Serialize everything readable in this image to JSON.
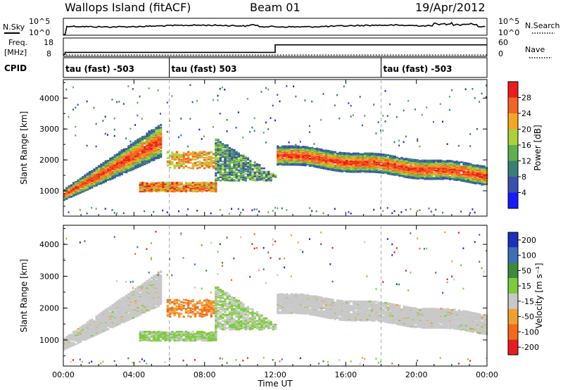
{
  "header": {
    "left": "Wallops Island (fitACF)",
    "center": "Beam 01",
    "right": "19/Apr/2012"
  },
  "noise_panel": {
    "left_label": "N.Sky",
    "right_label": "N.Search",
    "left_ticks": [
      "10^5",
      "10^0"
    ],
    "right_ticks": [
      "10^5",
      "10^0"
    ]
  },
  "freq_panel": {
    "left_label_line1": "Freq.",
    "left_label_line2": "[MHz]",
    "left_ticks": [
      "18",
      "8"
    ],
    "right_label": "Nave",
    "right_ticks": [
      "60",
      "0"
    ],
    "freq_steps": [
      {
        "t": 0.0,
        "mhz": 9.2
      },
      {
        "t": 0.1,
        "mhz": 10.3
      },
      {
        "t": 12.0,
        "mhz": 14.8
      }
    ],
    "nave_level": 5
  },
  "cpid_panel": {
    "label": "CPID",
    "segments": [
      {
        "start": 0.0,
        "text": "tau (fast) -503"
      },
      {
        "start": 6.0,
        "text": "tau (fast) 503"
      },
      {
        "start": 18.0,
        "text": "tau (fast) -503"
      }
    ]
  },
  "power_panel": {
    "ylabel": "Slant Range [km]",
    "yticks": [
      "1000",
      "2000",
      "3000",
      "4000"
    ],
    "colorbar_label": "Power [dB]",
    "colorbar_ticks": [
      "4",
      "8",
      "12",
      "16",
      "20",
      "24",
      "28"
    ],
    "colors": [
      "#1a1aff",
      "#3a4fb0",
      "#3a7f76",
      "#5fae4f",
      "#a8d13a",
      "#f5a623",
      "#f26522",
      "#ee1c1c"
    ]
  },
  "velocity_panel": {
    "ylabel": "Slant Range [km]",
    "yticks": [
      "1000",
      "2000",
      "3000",
      "4000"
    ],
    "colorbar_label": "Velocity [m s⁻¹]",
    "colorbar_ticks": [
      "200",
      "100",
      "50",
      "15",
      "-15",
      "-50",
      "-100",
      "-200"
    ],
    "colors": [
      "#1a2fbf",
      "#3c6fb3",
      "#3d8a3c",
      "#7ccc3a",
      "#c8c8c8",
      "#f0a030",
      "#f36a1a",
      "#e81c1c"
    ]
  },
  "time_axis": {
    "xlabel": "Time UT",
    "ticks": [
      "00:00",
      "04:00",
      "08:00",
      "12:00",
      "16:00",
      "20:00",
      "00:00"
    ]
  },
  "chart_data": {
    "type": "heatmap",
    "title": "Wallops Island (fitACF)   Beam 01   19/Apr/2012",
    "xlabel": "Time UT",
    "xlim": [
      "00:00",
      "24:00"
    ],
    "ylabel": "Slant Range [km]",
    "ylim": [
      180,
      4600
    ],
    "grid": false,
    "panels": [
      {
        "name": "Power",
        "colorbar_label": "Power [dB]",
        "color_range": [
          0,
          30
        ],
        "features": [
          {
            "t_start": 0.0,
            "t_end": 5.5,
            "range_start_km": 850,
            "range_end_km": 2900,
            "power_db": 26
          },
          {
            "t_start": 4.2,
            "t_end": 8.5,
            "range_start_km": 1000,
            "range_end_km": 1200,
            "power_db": 22
          },
          {
            "t_start": 8.5,
            "t_end": 12.0,
            "range_start_km": 1300,
            "range_end_km": 2800,
            "power_db": 12
          },
          {
            "t_start": 12.0,
            "t_end": 24.0,
            "range_start_km": 1400,
            "range_end_km": 2300,
            "power_db": 22
          }
        ]
      },
      {
        "name": "Velocity",
        "colorbar_label": "Velocity [m s⁻¹]",
        "color_range": [
          -200,
          200
        ],
        "features": [
          {
            "t_start": 0.0,
            "t_end": 5.5,
            "range_start_km": 800,
            "range_end_km": 2900,
            "velocity_ms": 0
          },
          {
            "t_start": 4.2,
            "t_end": 8.5,
            "range_start_km": 950,
            "range_end_km": 1250,
            "velocity_ms": 40
          },
          {
            "t_start": 6.0,
            "t_end": 9.0,
            "range_start_km": 1800,
            "range_end_km": 2200,
            "velocity_ms": -40
          },
          {
            "t_start": 12.0,
            "t_end": 24.0,
            "range_start_km": 1300,
            "range_end_km": 2300,
            "velocity_ms": 0
          }
        ]
      }
    ]
  }
}
